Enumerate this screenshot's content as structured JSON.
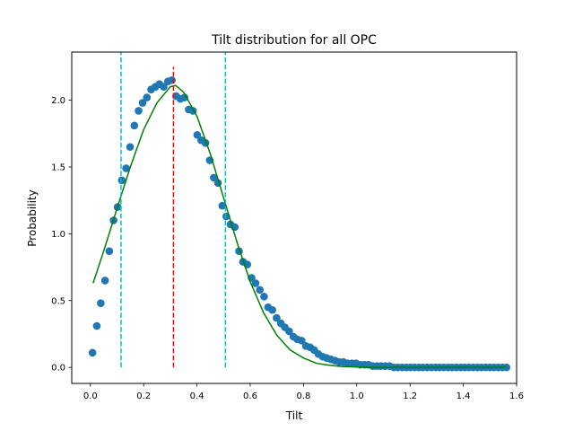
{
  "chart_data": {
    "type": "scatter",
    "title": "Tilt distribution for all OPC",
    "xlabel": "Tilt",
    "ylabel": "Probability",
    "xlim": [
      -0.07,
      1.6
    ],
    "ylim": [
      -0.12,
      2.36
    ],
    "xticks": [
      0.0,
      0.2,
      0.4,
      0.6,
      0.8,
      1.0,
      1.2,
      1.4,
      1.6
    ],
    "xtick_labels": [
      "0.0",
      "0.2",
      "0.4",
      "0.6",
      "0.8",
      "1.0",
      "1.2",
      "1.4",
      "1.6"
    ],
    "yticks": [
      0.0,
      0.5,
      1.0,
      1.5,
      2.0
    ],
    "ytick_labels": [
      "0.0",
      "0.5",
      "1.0",
      "1.5",
      "2.0"
    ],
    "grid": false,
    "colors": {
      "points": "#1f77b4",
      "fit": "#008000",
      "mean_line": "#ff0000",
      "bound_lines": "#00bfbf"
    },
    "series": [
      {
        "kind": "scatter",
        "x": [
          0.008,
          0.024,
          0.039,
          0.055,
          0.071,
          0.087,
          0.102,
          0.118,
          0.134,
          0.149,
          0.165,
          0.181,
          0.196,
          0.212,
          0.228,
          0.244,
          0.259,
          0.275,
          0.291,
          0.306,
          0.322,
          0.338,
          0.353,
          0.369,
          0.385,
          0.401,
          0.416,
          0.432,
          0.448,
          0.463,
          0.479,
          0.495,
          0.51,
          0.526,
          0.542,
          0.558,
          0.573,
          0.589,
          0.605,
          0.62,
          0.636,
          0.652,
          0.667,
          0.683,
          0.699,
          0.715,
          0.73,
          0.746,
          0.762,
          0.777,
          0.793,
          0.809,
          0.825,
          0.84,
          0.856,
          0.872,
          0.887,
          0.903,
          0.919,
          0.934,
          0.95,
          0.966,
          0.982,
          0.997,
          1.013,
          1.029,
          1.044,
          1.06,
          1.076,
          1.091,
          1.107,
          1.123,
          1.139,
          1.154,
          1.17,
          1.186,
          1.201,
          1.217,
          1.233,
          1.248,
          1.264,
          1.28,
          1.296,
          1.311,
          1.327,
          1.343,
          1.358,
          1.374,
          1.39,
          1.405,
          1.421,
          1.437,
          1.453,
          1.468,
          1.484,
          1.5,
          1.515,
          1.531,
          1.547,
          1.562
        ],
        "y": [
          0.11,
          0.31,
          0.48,
          0.65,
          0.87,
          1.1,
          1.2,
          1.4,
          1.49,
          1.65,
          1.81,
          1.92,
          1.98,
          2.02,
          2.08,
          2.1,
          2.12,
          2.1,
          2.14,
          2.15,
          2.03,
          2.01,
          2.02,
          1.93,
          1.92,
          1.74,
          1.7,
          1.68,
          1.55,
          1.42,
          1.38,
          1.21,
          1.13,
          1.07,
          1.05,
          0.87,
          0.79,
          0.77,
          0.67,
          0.63,
          0.58,
          0.53,
          0.45,
          0.43,
          0.37,
          0.33,
          0.3,
          0.27,
          0.23,
          0.21,
          0.2,
          0.16,
          0.15,
          0.13,
          0.1,
          0.08,
          0.07,
          0.06,
          0.05,
          0.04,
          0.04,
          0.03,
          0.03,
          0.03,
          0.02,
          0.02,
          0.02,
          0.01,
          0.01,
          0.01,
          0.01,
          0.01,
          0.0,
          0.0,
          0.0,
          0.0,
          0.0,
          0.0,
          0.0,
          0.0,
          0.0,
          0.0,
          0.0,
          0.0,
          0.0,
          0.0,
          0.0,
          0.0,
          0.0,
          0.0,
          0.0,
          0.0,
          0.0,
          0.0,
          0.0,
          0.0,
          0.0,
          0.0,
          0.0,
          0.0
        ]
      },
      {
        "kind": "line",
        "x": [
          0.01,
          0.05,
          0.1,
          0.15,
          0.2,
          0.25,
          0.3,
          0.32,
          0.35,
          0.4,
          0.45,
          0.5,
          0.55,
          0.6,
          0.65,
          0.7,
          0.75,
          0.8,
          0.85,
          0.9,
          0.95,
          1.0,
          1.05,
          1.1,
          1.15,
          1.2,
          1.3,
          1.4,
          1.5,
          1.56
        ],
        "y": [
          0.63,
          0.87,
          1.19,
          1.5,
          1.78,
          1.98,
          2.1,
          2.11,
          2.06,
          1.88,
          1.6,
          1.27,
          0.94,
          0.64,
          0.41,
          0.24,
          0.13,
          0.07,
          0.03,
          0.015,
          0.006,
          0.002,
          0.001,
          0.0,
          0.0,
          0.0,
          0.0,
          0.0,
          0.0,
          0.0
        ]
      }
    ],
    "vlines": [
      {
        "role": "lower",
        "x": 0.115,
        "y_range": [
          0.0,
          2.38
        ],
        "style": "dashed"
      },
      {
        "role": "mean",
        "x": 0.312,
        "y_range": [
          0.0,
          2.25
        ],
        "style": "dashed"
      },
      {
        "role": "upper",
        "x": 0.507,
        "y_range": [
          0.0,
          2.38
        ],
        "style": "dashed"
      }
    ]
  }
}
